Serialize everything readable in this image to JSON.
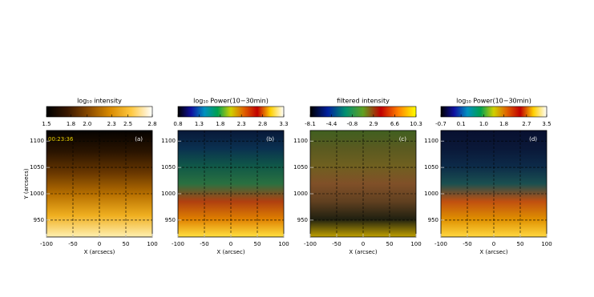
{
  "chart_data": [
    {
      "type": "image",
      "colorbar_label": "log₁₀ intensity",
      "clim": [
        1.5,
        2.8
      ],
      "cticks": [
        1.5,
        1.8,
        {
          "value": 2,
          "label": "2.0"
        },
        2.3,
        2.5,
        2.8
      ],
      "colormap": [
        "#000000",
        "#3a1800",
        "#8a4a00",
        "#d88a00",
        "#ffc840",
        "#ffffff"
      ],
      "image_colors": [
        "#050200",
        "#2a1400",
        "#6a3800",
        "#b87000",
        "#f0b020",
        "#fff0b0"
      ],
      "xlim": [
        -100,
        100
      ],
      "xticks": [
        -100,
        -50,
        0,
        50,
        100
      ],
      "ylim": [
        918,
        1120
      ],
      "yticks": [
        950,
        1000,
        1050,
        1100
      ],
      "xlabel": "X (arcsecs)",
      "ylabel": "Y (arcsecs)",
      "timestamp": "00:23:36",
      "panel_label": "(a)",
      "grid": true
    },
    {
      "type": "image",
      "colorbar_label": "log₁₀ Power(10−30min)",
      "clim": [
        0.8,
        3.3
      ],
      "cticks": [
        0.8,
        1.3,
        1.8,
        2.3,
        2.8,
        3.3
      ],
      "colormap": [
        "#000000",
        "#1010a0",
        "#0090c0",
        "#00a050",
        "#d0d000",
        "#e06000",
        "#c00000",
        "#ffd000",
        "#ffffff"
      ],
      "image_colors": [
        "#081838",
        "#0a3050",
        "#105848",
        "#2a7040",
        "#b04010",
        "#e08000",
        "#ffe040"
      ],
      "xlim": [
        -100,
        100
      ],
      "xticks": [
        -100,
        -50,
        0,
        50,
        100
      ],
      "ylim": [
        918,
        1120
      ],
      "yticks": [
        950,
        1000,
        1050,
        1100
      ],
      "xlabel": "X (arcsec)",
      "panel_label": "(b)",
      "grid": true
    },
    {
      "type": "image",
      "colorbar_label": "filtered intensity",
      "clim": [
        -8.1,
        10.3
      ],
      "cticks": [
        -8.1,
        -4.4,
        -0.8,
        2.9,
        6.6,
        10.3
      ],
      "colormap": [
        "#000000",
        "#0020a0",
        "#009070",
        "#60a020",
        "#c00000",
        "#ff8000",
        "#ffff00"
      ],
      "image_colors": [
        "#406020",
        "#5a5a20",
        "#706020",
        "#805028",
        "#604020",
        "#202010",
        "#c0a000"
      ],
      "xlim": [
        -100,
        100
      ],
      "xticks": [
        -100,
        -50,
        0,
        50,
        100
      ],
      "ylim": [
        918,
        1120
      ],
      "yticks": [
        950,
        1000,
        1050,
        1100
      ],
      "xlabel": "X (arcsec)",
      "panel_label": "(c)",
      "grid": true
    },
    {
      "type": "image",
      "colorbar_label": "log₁₀ Power(10−30min)",
      "clim": [
        -0.7,
        3.5
      ],
      "cticks": [
        -0.7,
        0.1,
        {
          "value": 1,
          "label": "1.0"
        },
        1.8,
        2.7,
        3.5
      ],
      "colormap": [
        "#000000",
        "#1010a0",
        "#0090c0",
        "#00a050",
        "#d0d000",
        "#e06000",
        "#c00000",
        "#ffd000",
        "#ffffff"
      ],
      "image_colors": [
        "#081030",
        "#0a1838",
        "#0c2a48",
        "#1a5050",
        "#c05010",
        "#e09000",
        "#ffd840"
      ],
      "xlim": [
        -100,
        100
      ],
      "xticks": [
        -100,
        -50,
        0,
        50,
        100
      ],
      "ylim": [
        918,
        1120
      ],
      "yticks": [
        950,
        1000,
        1050,
        1100
      ],
      "xlabel": "X (arcsec)",
      "panel_label": "(d)",
      "grid": true
    }
  ]
}
